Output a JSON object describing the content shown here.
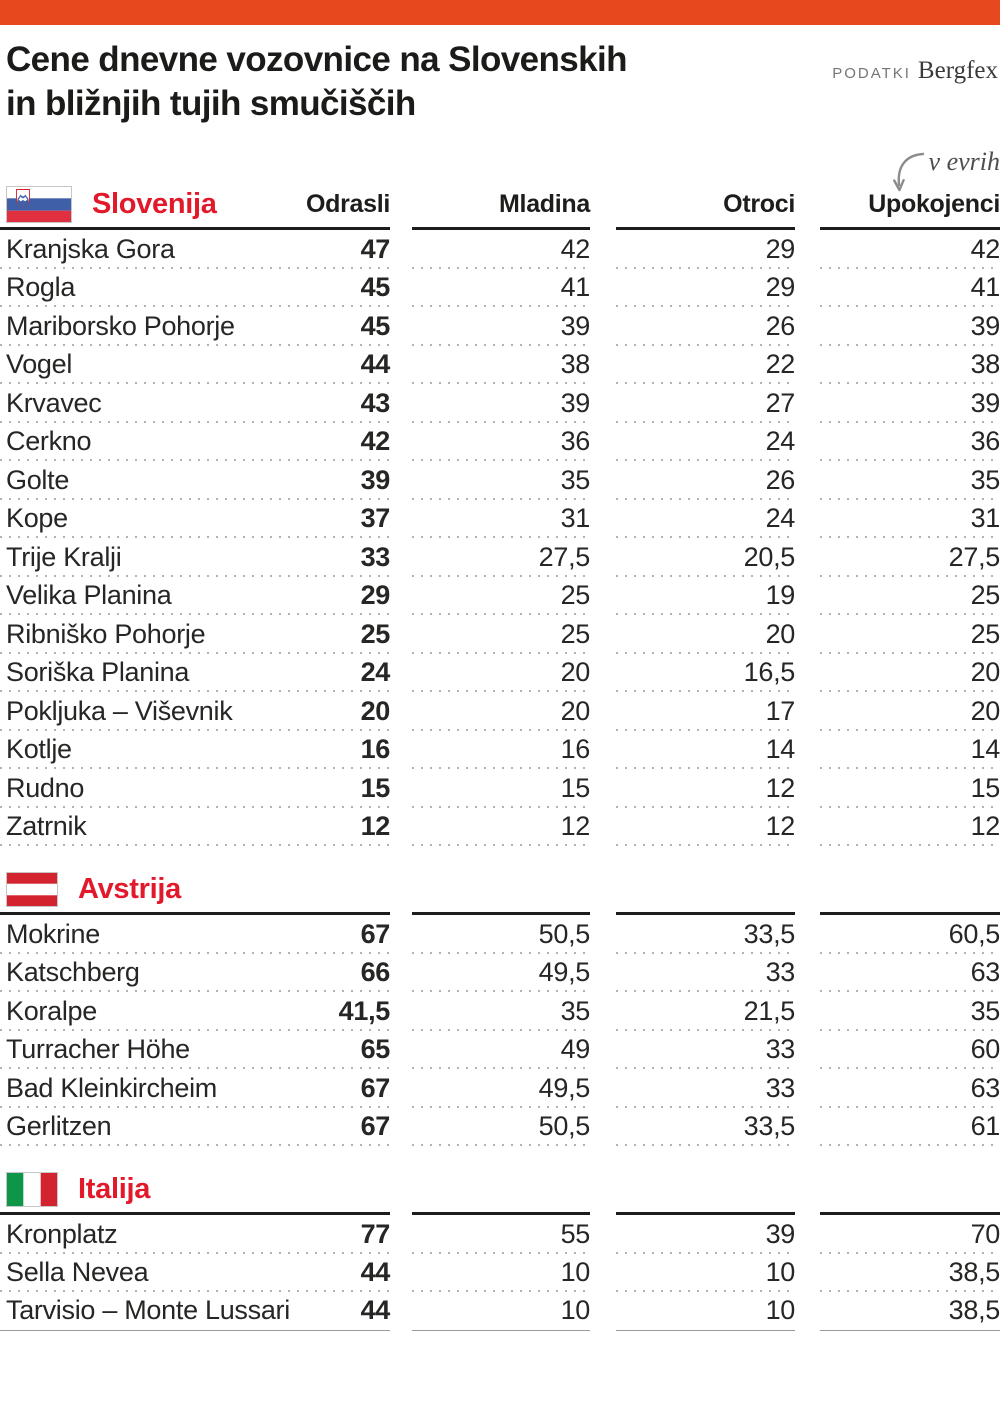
{
  "header": {
    "title_line1": "Cene dnevne vozovnice na Slovenskih",
    "title_line2": "in bližnjih tujih smučiščih",
    "source_label": "PODATKI",
    "source_name": "Bergfex",
    "unit_note": "v evrih"
  },
  "chart_data": {
    "type": "table",
    "title": "Cene dnevne vozovnice na Slovenskih in bližnjih tujih smučiščih",
    "unit": "v evrih",
    "source": "PODATKI Bergfex",
    "columns": [
      "Odrasli",
      "Mladina",
      "Otroci",
      "Upokojenci"
    ],
    "sections": [
      {
        "id": "slovenija",
        "name": "Slovenija",
        "flag": "slovenia-flag",
        "show_column_headers": true,
        "rows": [
          {
            "name": "Kranjska Gora",
            "values": [
              "47",
              "42",
              "29",
              "42"
            ]
          },
          {
            "name": "Rogla",
            "values": [
              "45",
              "41",
              "29",
              "41"
            ]
          },
          {
            "name": "Mariborsko Pohorje",
            "values": [
              "45",
              "39",
              "26",
              "39"
            ]
          },
          {
            "name": "Vogel",
            "values": [
              "44",
              "38",
              "22",
              "38"
            ]
          },
          {
            "name": "Krvavec",
            "values": [
              "43",
              "39",
              "27",
              "39"
            ]
          },
          {
            "name": "Cerkno",
            "values": [
              "42",
              "36",
              "24",
              "36"
            ]
          },
          {
            "name": "Golte",
            "values": [
              "39",
              "35",
              "26",
              "35"
            ]
          },
          {
            "name": "Kope",
            "values": [
              "37",
              "31",
              "24",
              "31"
            ]
          },
          {
            "name": "Trije Kralji",
            "values": [
              "33",
              "27,5",
              "20,5",
              "27,5"
            ]
          },
          {
            "name": "Velika Planina",
            "values": [
              "29",
              "25",
              "19",
              "25"
            ]
          },
          {
            "name": "Ribniško Pohorje",
            "values": [
              "25",
              "25",
              "20",
              "25"
            ]
          },
          {
            "name": "Soriška Planina",
            "values": [
              "24",
              "20",
              "16,5",
              "20"
            ]
          },
          {
            "name": "Pokljuka – Viševnik",
            "values": [
              "20",
              "20",
              "17",
              "20"
            ]
          },
          {
            "name": "Kotlje",
            "values": [
              "16",
              "16",
              "14",
              "14"
            ]
          },
          {
            "name": "Rudno",
            "values": [
              "15",
              "15",
              "12",
              "15"
            ]
          },
          {
            "name": "Zatrnik",
            "values": [
              "12",
              "12",
              "12",
              "12"
            ]
          }
        ]
      },
      {
        "id": "avstrija",
        "name": "Avstrija",
        "flag": "austria-flag",
        "show_column_headers": false,
        "rows": [
          {
            "name": "Mokrine",
            "values": [
              "67",
              "50,5",
              "33,5",
              "60,5"
            ]
          },
          {
            "name": "Katschberg",
            "values": [
              "66",
              "49,5",
              "33",
              "63"
            ]
          },
          {
            "name": "Koralpe",
            "values": [
              "41,5",
              "35",
              "21,5",
              "35"
            ]
          },
          {
            "name": "Turracher Höhe",
            "values": [
              "65",
              "49",
              "33",
              "60"
            ]
          },
          {
            "name": "Bad Kleinkircheim",
            "values": [
              "67",
              "49,5",
              "33",
              "63"
            ]
          },
          {
            "name": "Gerlitzen",
            "values": [
              "67",
              "50,5",
              "33,5",
              "61"
            ]
          }
        ]
      },
      {
        "id": "italija",
        "name": "Italija",
        "flag": "italy-flag",
        "show_column_headers": false,
        "rows": [
          {
            "name": "Kronplatz",
            "values": [
              "77",
              "55",
              "39",
              "70"
            ]
          },
          {
            "name": "Sella Nevea",
            "values": [
              "44",
              "10",
              "10",
              "38,5"
            ]
          },
          {
            "name": "Tarvisio – Monte Lussari",
            "values": [
              "44",
              "10",
              "10",
              "38,5"
            ]
          }
        ]
      }
    ]
  },
  "colors": {
    "top_bar": "#e8481e",
    "accent_red": "#e2182b",
    "text": "#222220",
    "table_rule": "#1d1d1b",
    "dotted_line": "#b2b2b2",
    "source_gray": "#757575",
    "note_gray": "#4f4f4f"
  }
}
